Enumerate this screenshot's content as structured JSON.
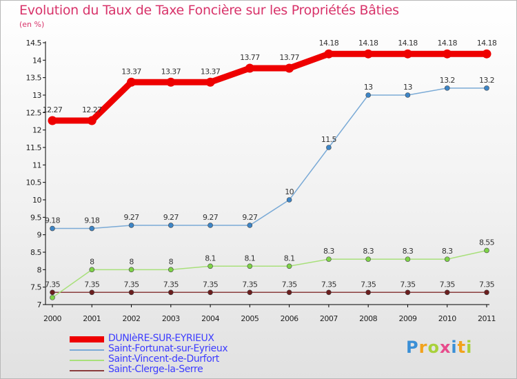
{
  "title": "Evolution du Taux de Taxe Foncière sur les Propriétés Bâties",
  "unit_label": "(en %)",
  "chart_data": {
    "type": "line",
    "title": "Evolution du Taux de Taxe Foncière sur les Propriétés Bâties",
    "ylabel": "(en %)",
    "x": [
      "2000",
      "2001",
      "2002",
      "2003",
      "2004",
      "2005",
      "2006",
      "2007",
      "2008",
      "2009",
      "2010",
      "2011"
    ],
    "ylim": [
      7,
      14.5
    ],
    "yticks": [
      "7",
      "7.5",
      "8",
      "8.5",
      "9",
      "9.5",
      "10",
      "10.5",
      "11",
      "11.5",
      "12",
      "12.5",
      "13",
      "13.5",
      "14",
      "14.5"
    ],
    "grid": false,
    "legend_position": "bottom-left",
    "series": [
      {
        "name": "DUNIèRE-SUR-EYRIEUX",
        "color": "#ee0000",
        "values": [
          12.27,
          12.27,
          13.37,
          13.37,
          13.37,
          13.77,
          13.77,
          14.18,
          14.18,
          14.18,
          14.18,
          14.18
        ],
        "labels": [
          "12.27",
          "12.27",
          "13.37",
          "13.37",
          "13.37",
          "13.77",
          "13.77",
          "14.18",
          "14.18",
          "14.18",
          "14.18",
          "14.18"
        ]
      },
      {
        "name": "Saint-Fortunat-sur-Eyrieux",
        "color": "#7aaad6",
        "marker": "#3d85c6",
        "values": [
          9.18,
          9.18,
          9.27,
          9.27,
          9.27,
          9.27,
          10,
          11.5,
          13,
          13,
          13.2,
          13.2
        ],
        "labels": [
          "9.18",
          "9.18",
          "9.27",
          "9.27",
          "9.27",
          "9.27",
          "10",
          "11.5",
          "13",
          "13",
          "13.2",
          "13.2"
        ]
      },
      {
        "name": "Saint-Vincent-de-Durfort",
        "color": "#a8e07a",
        "marker": "#7ed348",
        "values": [
          7.2,
          8,
          8,
          8,
          8.1,
          8.1,
          8.1,
          8.3,
          8.3,
          8.3,
          8.3,
          8.55
        ],
        "labels": [
          "",
          "8",
          "8",
          "8",
          "8.1",
          "8.1",
          "8.1",
          "8.3",
          "8.3",
          "8.3",
          "8.3",
          "8.55"
        ]
      },
      {
        "name": "Saint-Clerge-la-Serre",
        "color": "#8a3d3d",
        "marker": "#6b1e1e",
        "values": [
          7.35,
          7.35,
          7.35,
          7.35,
          7.35,
          7.35,
          7.35,
          7.35,
          7.35,
          7.35,
          7.35,
          7.35
        ],
        "labels": [
          "7.35",
          "7.35",
          "7.35",
          "7.35",
          "7.35",
          "7.35",
          "7.35",
          "7.35",
          "7.35",
          "7.35",
          "7.35",
          "7.35"
        ]
      }
    ]
  },
  "logo": {
    "letters": [
      "P",
      "r",
      "o",
      "x",
      "i",
      "t",
      "i"
    ],
    "colors": [
      "#3a8fd6",
      "#f2a21c",
      "#a8d13b",
      "#e74c8c",
      "#3a8fd6",
      "#f2a21c",
      "#a8d13b"
    ]
  }
}
